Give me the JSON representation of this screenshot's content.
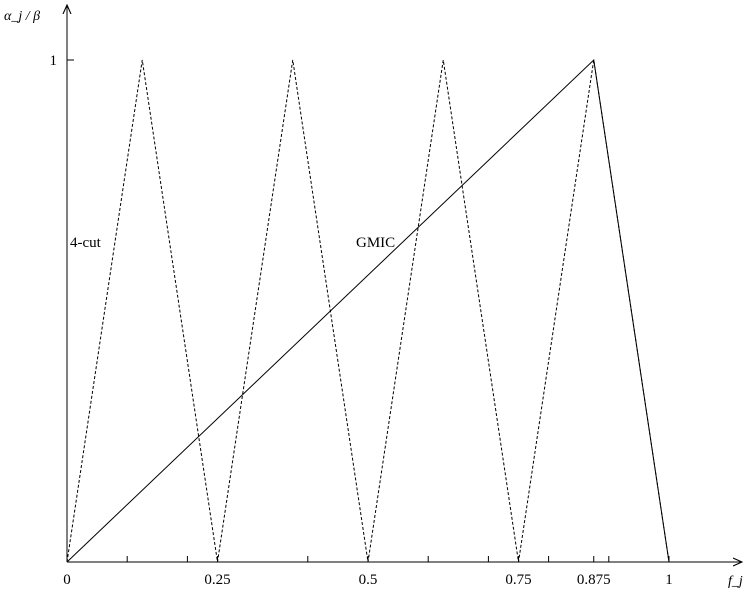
{
  "chart_data": {
    "type": "line",
    "title": "",
    "xlabel": "f_j",
    "ylabel": "α_j / β",
    "xlim": [
      0,
      1.1
    ],
    "ylim": [
      0,
      1.05
    ],
    "x_ticks": [
      {
        "value": 0,
        "label": "0"
      },
      {
        "value": 0.25,
        "label": "0.25"
      },
      {
        "value": 0.5,
        "label": "0.5"
      },
      {
        "value": 0.75,
        "label": "0.75"
      },
      {
        "value": 0.875,
        "label": "0.875"
      },
      {
        "value": 1,
        "label": "1"
      }
    ],
    "x_minor_ticks": [
      0.1,
      0.2,
      0.4,
      0.6,
      0.7,
      0.8,
      0.9
    ],
    "y_ticks": [
      {
        "value": 1,
        "label": "1"
      }
    ],
    "series": [
      {
        "name": "4-cut",
        "style": "dashed",
        "x": [
          0,
          0.125,
          0.25,
          0.375,
          0.5,
          0.625,
          0.75,
          0.875,
          1
        ],
        "y": [
          0,
          1,
          0,
          1,
          0,
          1,
          0,
          1,
          0
        ]
      },
      {
        "name": "GMIC",
        "style": "solid",
        "x": [
          0,
          0.875,
          1
        ],
        "y": [
          0,
          1,
          0
        ]
      }
    ],
    "grid": false,
    "legend": "none"
  }
}
